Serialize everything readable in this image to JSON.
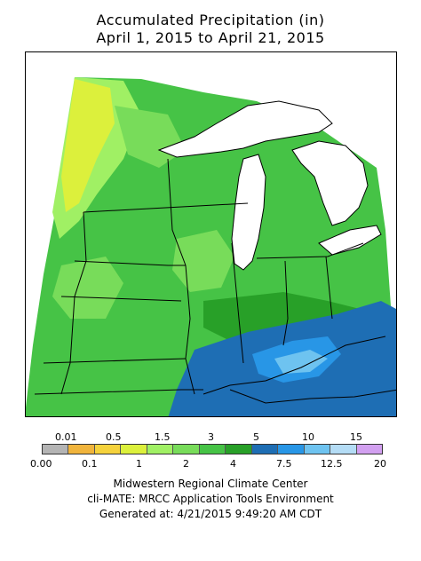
{
  "title": {
    "line1": "Accumulated Precipitation (in)",
    "line2": "April 1, 2015 to April 21, 2015"
  },
  "legend": {
    "upper_labels": [
      "0.01",
      "0.5",
      "1.5",
      "3",
      "5",
      "10",
      "15"
    ],
    "lower_labels": [
      "0.00",
      "0.1",
      "1",
      "2",
      "4",
      "7.5",
      "12.5",
      "20"
    ],
    "colors": [
      "#b4b4b4",
      "#f0b43c",
      "#f5d23c",
      "#dcf03c",
      "#a0f064",
      "#78dc5a",
      "#46c346",
      "#28a028",
      "#1e6eb4",
      "#2896e6",
      "#6ec3f0",
      "#b4dcf5",
      "#d2a0f0"
    ]
  },
  "footer": {
    "line1": "Midwestern Regional Climate Center",
    "line2": "cli-MATE: MRCC Application Tools Environment",
    "line3": "Generated at: 4/21/2015 9:49:20 AM CDT"
  },
  "map": {
    "region": "Upper Midwest",
    "lake_color": "#ffffff",
    "border_color": "#000000"
  }
}
